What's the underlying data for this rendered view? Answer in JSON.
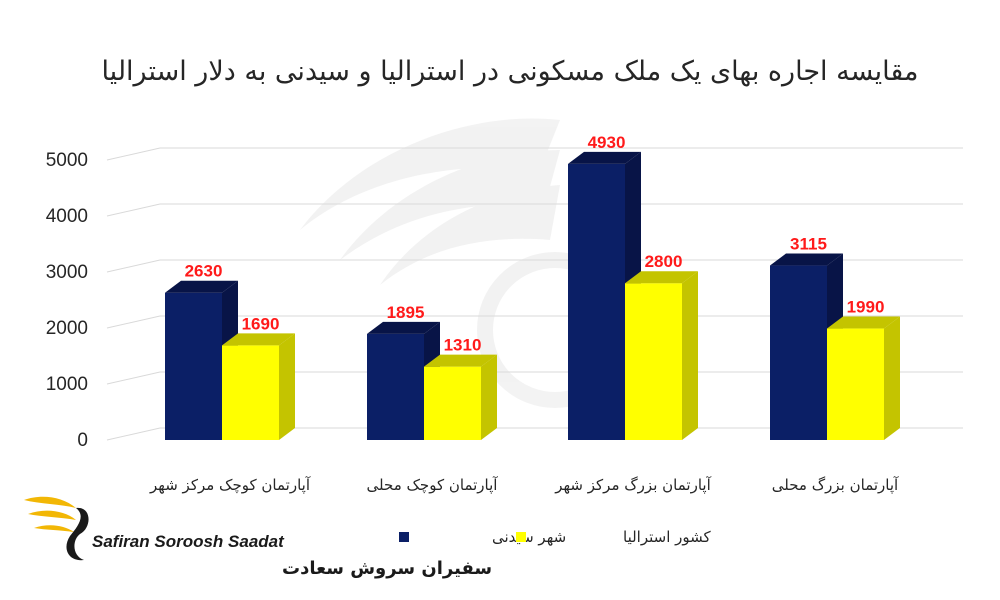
{
  "chart_data": {
    "type": "bar",
    "title": "مقایسه اجاره بهای یک ملک مسکونی در استرالیا و سیدنی به دلار استرالیا",
    "categories": [
      "آپارتمان کوچک مرکز شهر",
      "آپارتمان کوچک محلی",
      "آپارتمان بزرگ مرکز شهر",
      "آپارتمان بزرگ محلی"
    ],
    "series": [
      {
        "name": "شهر سیدنی",
        "values": [
          2630,
          1895,
          4930,
          3115
        ],
        "color": "#0b1f66",
        "side_color": "#081447"
      },
      {
        "name": "کشور استرالیا",
        "values": [
          1690,
          1310,
          2800,
          1990
        ],
        "color": "#ffff00",
        "side_color": "#c4c400"
      }
    ],
    "yticks": [
      0,
      1000,
      2000,
      3000,
      4000,
      5000
    ],
    "ylim": [
      0,
      5300
    ],
    "xlabel": "",
    "ylabel": "",
    "grid": true,
    "legend_position": "bottom",
    "three_d": true,
    "data_label_color": "#ff1a1a"
  },
  "logo": {
    "latin": "Safiran Soroosh Saadat",
    "farsi": "سفیران سروش سعادت",
    "accent_color": "#f2b705"
  }
}
